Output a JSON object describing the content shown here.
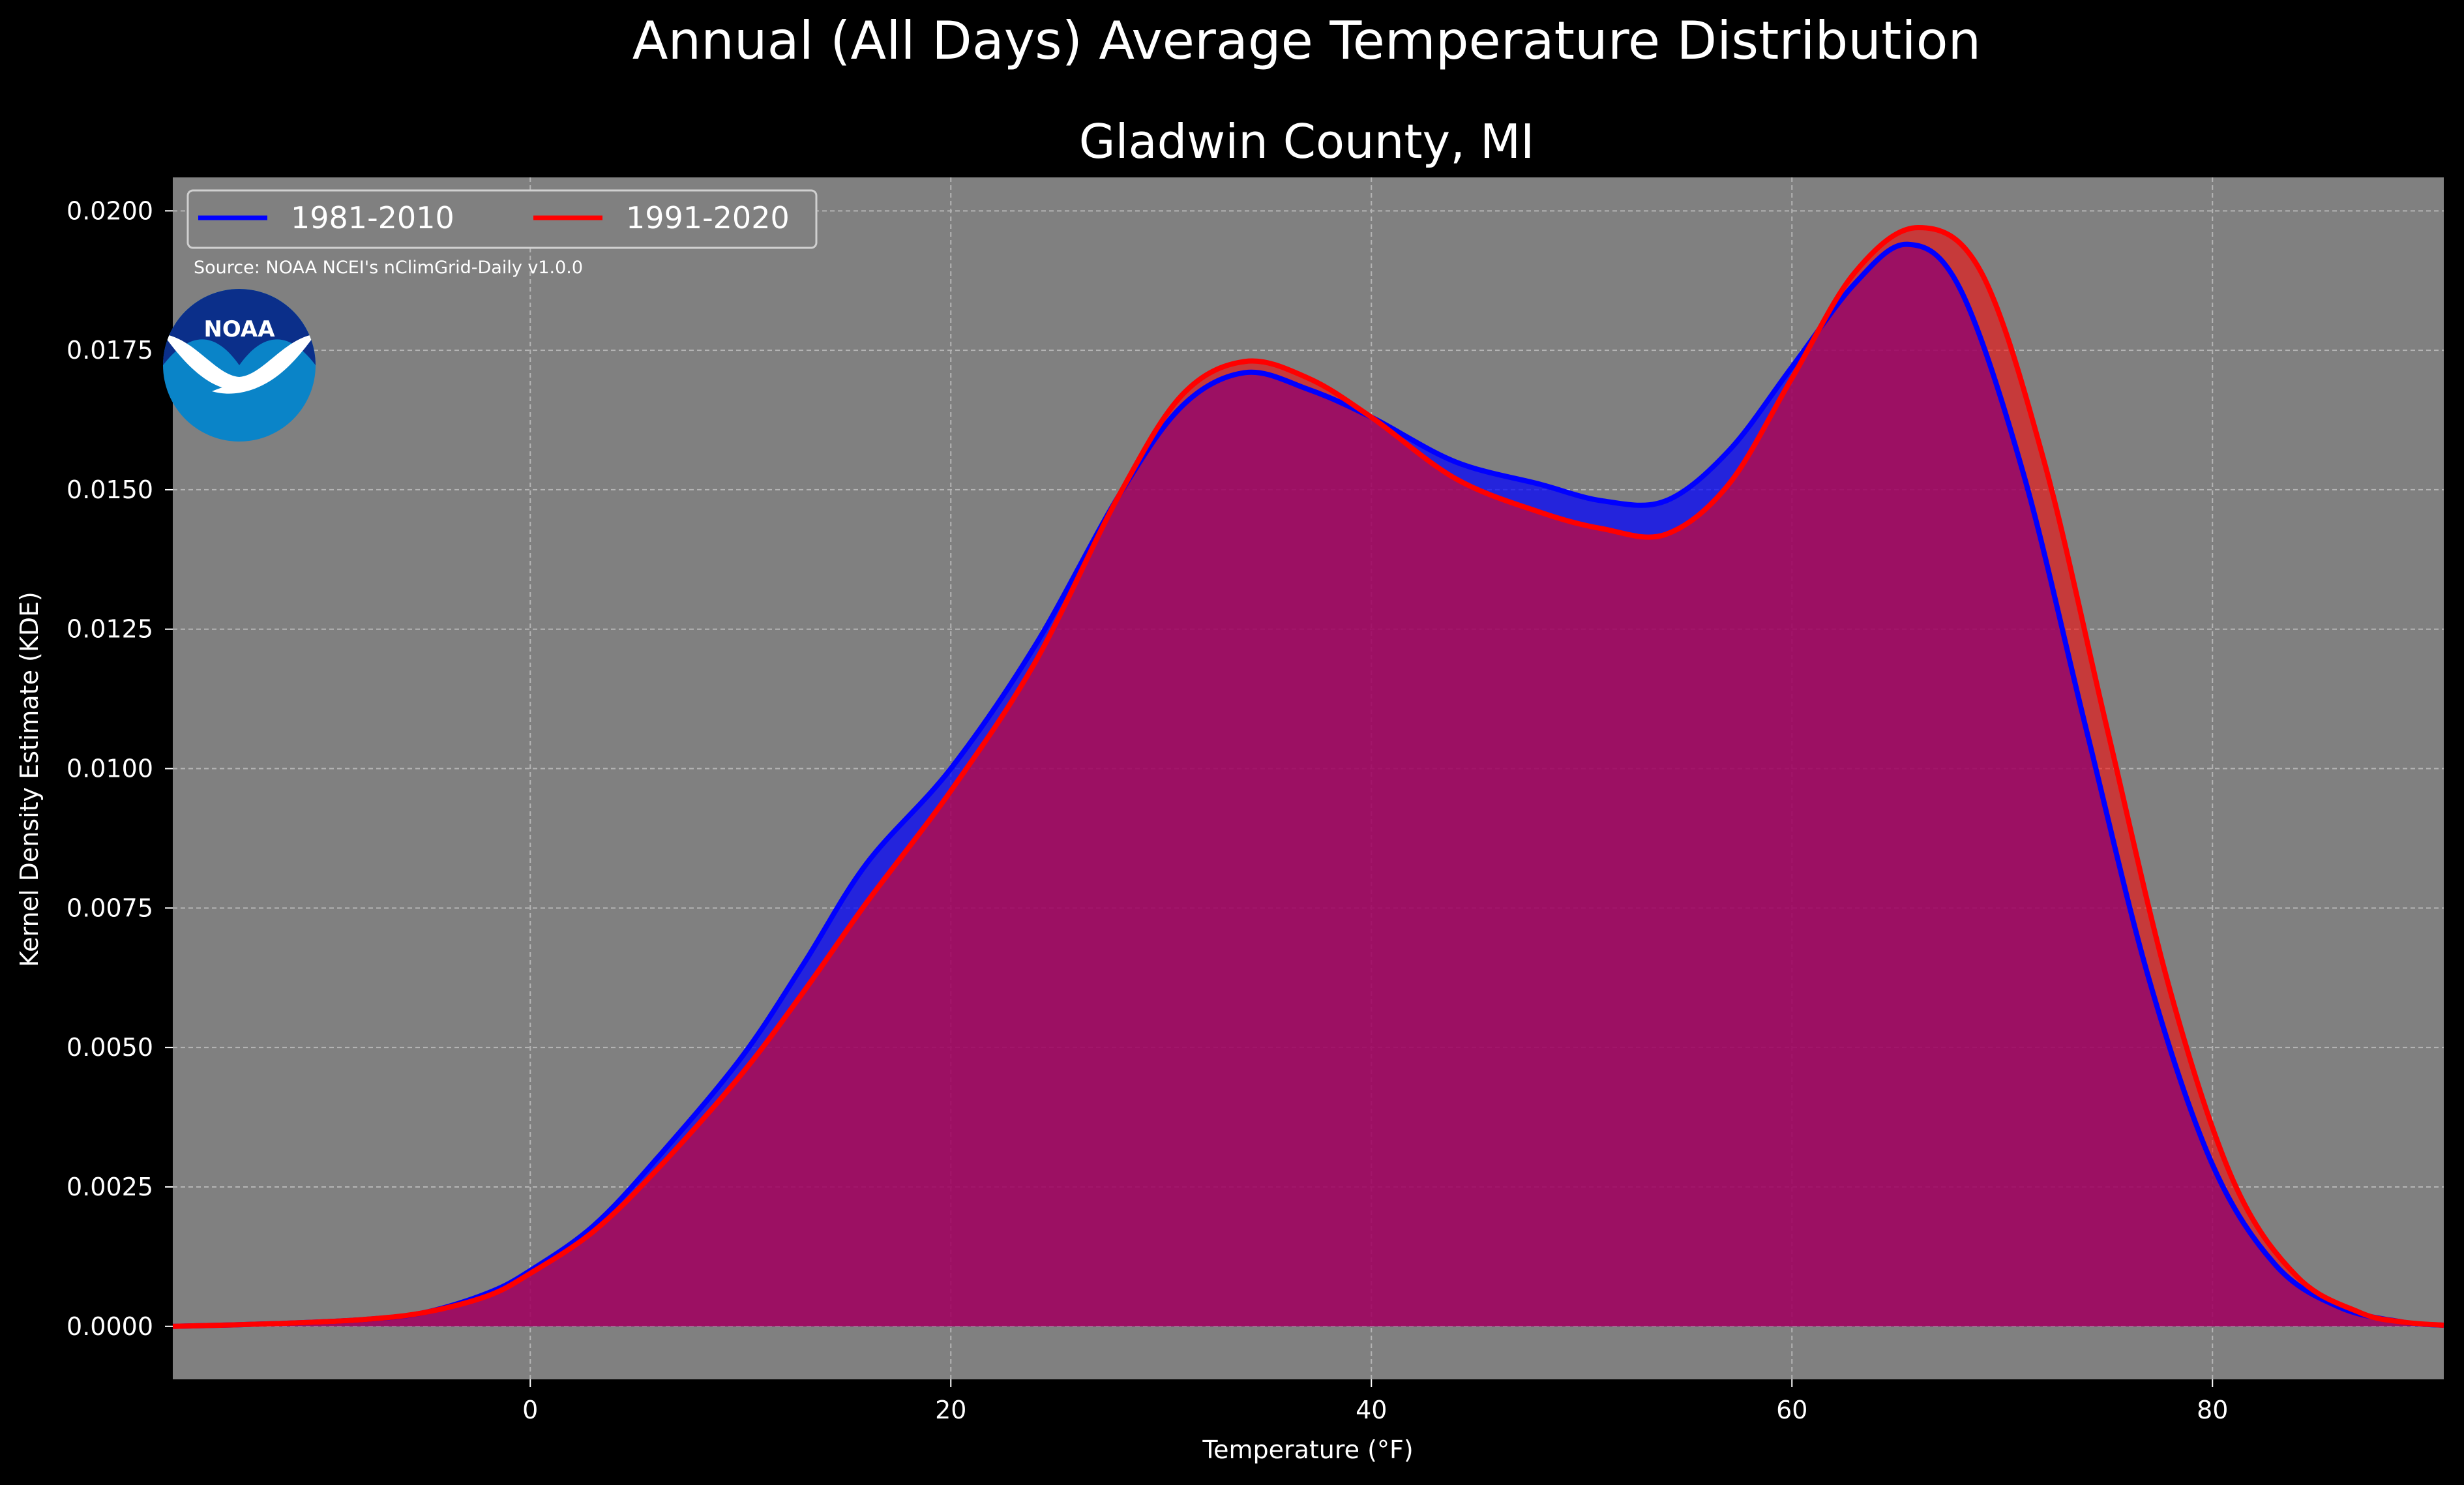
{
  "title": "Annual (All Days) Average Temperature Distribution",
  "subtitle": "Gladwin County, MI",
  "source": "Source: NOAA NCEI's nClimGrid-Daily v1.0.0",
  "logo_text": "NOAA",
  "colors": {
    "background": "#000000",
    "plot_bg": "#808080",
    "grid": "#b4b4b4",
    "series_1981": "#0000ff",
    "series_1991": "#ff0000",
    "overlap": "#9e1f5c",
    "logo_outer": "#0a84c8",
    "logo_inner": "#0b2f8a"
  },
  "chart_data": {
    "type": "area",
    "title": "Annual (All Days) Average Temperature Distribution",
    "subtitle": "Gladwin County, MI",
    "xlabel": "Temperature (°F)",
    "ylabel": "Kernel Density Estimate (KDE)",
    "xlim": [
      -17,
      91
    ],
    "ylim": [
      -0.00095,
      0.0206
    ],
    "xticks": [
      0,
      20,
      40,
      60,
      80
    ],
    "xtick_labels": [
      "0",
      "20",
      "40",
      "60",
      "80"
    ],
    "yticks": [
      0,
      0.0025,
      0.005,
      0.0075,
      0.01,
      0.0125,
      0.015,
      0.0175,
      0.02
    ],
    "ytick_labels": [
      "0.0000",
      "0.0025",
      "0.0050",
      "0.0075",
      "0.0100",
      "0.0125",
      "0.0150",
      "0.0175",
      "0.0200"
    ],
    "grid": true,
    "legend_position": "top-left",
    "series": [
      {
        "name": "1981-2010",
        "color": "#0000ff",
        "x": [
          -17,
          -12,
          -8,
          -5,
          -2,
          0,
          3,
          6,
          10,
          13,
          16,
          20,
          24,
          28,
          31,
          34,
          37,
          40,
          44,
          48,
          51,
          54,
          57,
          60,
          63,
          65.5,
          68,
          71,
          74,
          77,
          80,
          83,
          86,
          89,
          91
        ],
        "y": [
          0.0,
          5e-05,
          0.00012,
          0.00025,
          0.0006,
          0.001,
          0.0018,
          0.003,
          0.0048,
          0.0065,
          0.0083,
          0.01,
          0.0122,
          0.0149,
          0.0165,
          0.0171,
          0.0168,
          0.0163,
          0.0155,
          0.0151,
          0.0148,
          0.0148,
          0.0157,
          0.0172,
          0.0187,
          0.0194,
          0.0186,
          0.0153,
          0.0107,
          0.0062,
          0.0029,
          0.0011,
          0.00035,
          8e-05,
          2e-05
        ]
      },
      {
        "name": "1991-2020",
        "color": "#ff0000",
        "x": [
          -17,
          -12,
          -8,
          -5,
          -2,
          0,
          3,
          6,
          10,
          13,
          16,
          20,
          24,
          28,
          31,
          34,
          37,
          40,
          44,
          48,
          51,
          54,
          57,
          60,
          63,
          66,
          69,
          72,
          75,
          78,
          81,
          84,
          87,
          89,
          91
        ],
        "y": [
          0.0,
          5e-05,
          0.00012,
          0.00025,
          0.00055,
          0.00095,
          0.0017,
          0.0028,
          0.0045,
          0.006,
          0.0076,
          0.0096,
          0.0119,
          0.0149,
          0.0167,
          0.0173,
          0.017,
          0.0163,
          0.0152,
          0.0146,
          0.0143,
          0.0142,
          0.0151,
          0.017,
          0.0189,
          0.0197,
          0.0189,
          0.0155,
          0.0107,
          0.006,
          0.0026,
          0.0009,
          0.00025,
          8e-05,
          2e-05
        ]
      }
    ]
  }
}
